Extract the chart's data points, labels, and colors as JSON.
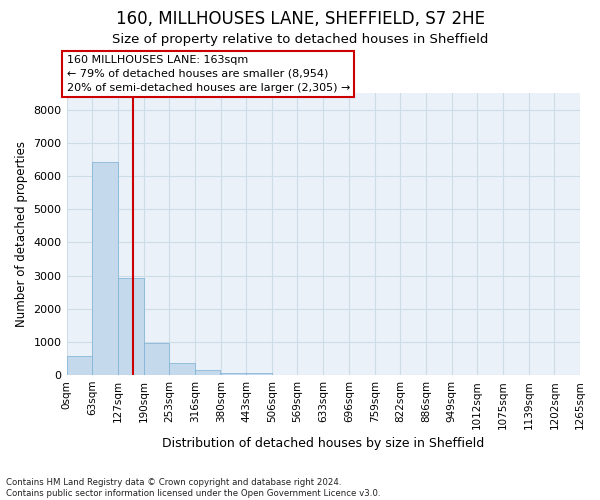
{
  "title1": "160, MILLHOUSES LANE, SHEFFIELD, S7 2HE",
  "title2": "Size of property relative to detached houses in Sheffield",
  "xlabel": "Distribution of detached houses by size in Sheffield",
  "ylabel": "Number of detached properties",
  "bar_color": "#c5d9ed",
  "bar_edge_color": "#7aafd4",
  "grid_color": "#ccdde8",
  "bg_color": "#eaf1f8",
  "vline_x": 163,
  "vline_color": "#cc0000",
  "annotation_line1": "160 MILLHOUSES LANE: 163sqm",
  "annotation_line2": "← 79% of detached houses are smaller (8,954)",
  "annotation_line3": "20% of semi-detached houses are larger (2,305) →",
  "footer_line1": "Contains HM Land Registry data © Crown copyright and database right 2024.",
  "footer_line2": "Contains public sector information licensed under the Open Government Licence v3.0.",
  "bin_edges": [
    0,
    63,
    127,
    190,
    253,
    316,
    380,
    443,
    506,
    569,
    633,
    696,
    759,
    822,
    886,
    949,
    1012,
    1075,
    1139,
    1202,
    1265
  ],
  "bar_heights": [
    580,
    6420,
    2920,
    960,
    360,
    140,
    65,
    65,
    0,
    0,
    0,
    0,
    0,
    0,
    0,
    0,
    0,
    0,
    0,
    0
  ],
  "ylim": [
    0,
    8500
  ],
  "yticks": [
    0,
    1000,
    2000,
    3000,
    4000,
    5000,
    6000,
    7000,
    8000
  ]
}
